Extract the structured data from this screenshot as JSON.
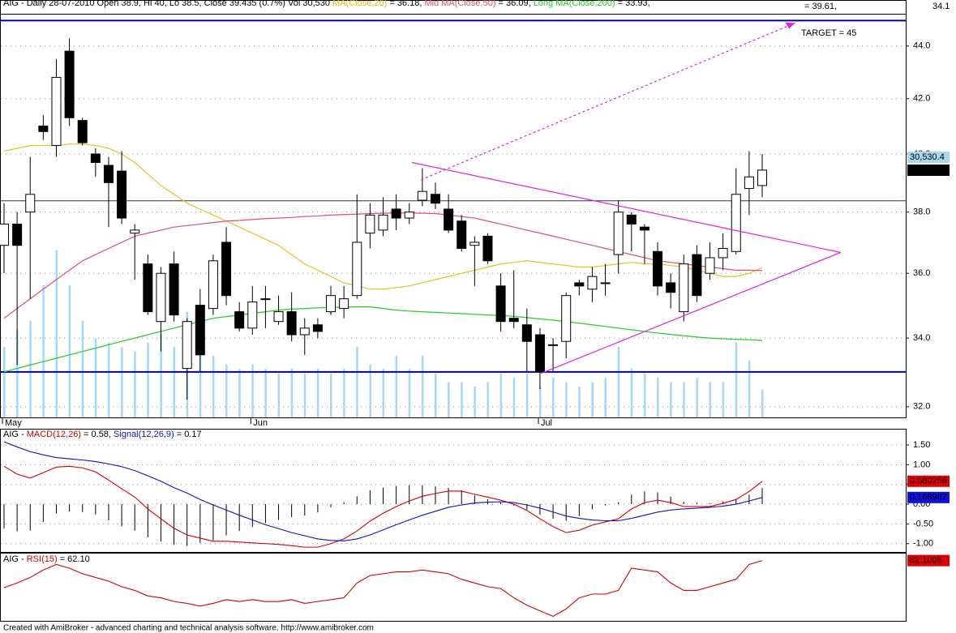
{
  "chart_data": [
    {
      "type": "candlestick",
      "header": [
        {
          "text": "AIG - Daily 28-07-2010 Open 38.9, Hi 40, Lo 38.5, Close 39.435 (0.7%) Vol 30,530 ",
          "color": "#000000"
        },
        {
          "text": "MA(Close,20)",
          "color": "#e8b800"
        },
        {
          "text": " = 36.18, ",
          "color": "#000000"
        },
        {
          "text": "Mid MA(Close,50)",
          "color": "#e0506a"
        },
        {
          "text": " = 36.09, ",
          "color": "#000000"
        },
        {
          "text": "Long MA(Close,200)",
          "color": "#22cc22"
        },
        {
          "text": " = 33.93,",
          "color": "#000000"
        }
      ],
      "header_right": "= 39.61,",
      "top_label": "34.1",
      "categories": [
        "May",
        null,
        null,
        null,
        null,
        null,
        null,
        null,
        null,
        null,
        null,
        null,
        null,
        null,
        null,
        null,
        null,
        null,
        null,
        "Jun",
        null,
        null,
        null,
        null,
        null,
        null,
        null,
        null,
        null,
        null,
        null,
        null,
        null,
        null,
        null,
        null,
        null,
        null,
        null,
        null,
        null,
        "Jul",
        null,
        null,
        null,
        null,
        null,
        null,
        null,
        null,
        null,
        null,
        null,
        null,
        null,
        null,
        null,
        null,
        null
      ],
      "open": [
        36.9,
        37.6,
        38.0,
        41.0,
        40.3,
        43.8,
        41.2,
        40.0,
        39.6,
        39.4,
        37.3,
        36.3,
        34.5,
        36.3,
        33.1,
        35.0,
        34.9,
        37.0,
        34.8,
        34.3,
        35.2,
        34.5,
        34.8,
        34.1,
        34.4,
        34.8,
        34.9,
        35.3,
        37.3,
        37.4,
        38.1,
        37.8,
        38.4,
        38.6,
        38.1,
        37.7,
        36.9,
        37.2,
        35.6,
        34.6,
        34.4,
        34.1,
        33.8,
        33.9,
        35.7,
        35.5,
        35.7,
        36.6,
        37.9,
        37.5,
        36.7,
        35.7,
        34.8,
        36.6,
        36.0,
        36.5,
        36.7,
        38.8,
        38.9
      ],
      "high": [
        38.3,
        38.0,
        39.9,
        41.4,
        43.5,
        44.3,
        41.3,
        40.2,
        39.9,
        40.1,
        37.6,
        36.6,
        36.2,
        36.7,
        34.6,
        35.5,
        36.6,
        37.5,
        35.1,
        35.6,
        35.6,
        35.3,
        35.4,
        34.6,
        34.6,
        35.6,
        35.6,
        38.6,
        38.3,
        38.5,
        38.6,
        38.3,
        39.5,
        39.0,
        38.6,
        37.9,
        37.2,
        37.3,
        36.0,
        36.1,
        34.9,
        34.3,
        34.0,
        35.4,
        35.8,
        36.2,
        36.3,
        38.4,
        38.0,
        37.6,
        37.0,
        36.0,
        36.6,
        36.9,
        37.0,
        37.3,
        39.5,
        40.1,
        40
      ],
      "low": [
        36.0,
        33.2,
        35.2,
        40.5,
        39.9,
        41.0,
        40.3,
        39.2,
        37.5,
        37.6,
        35.8,
        34.7,
        33.6,
        34.5,
        32.2,
        33.0,
        34.7,
        35.0,
        34.2,
        34.1,
        34.3,
        34.4,
        33.9,
        33.5,
        34.0,
        34.7,
        34.6,
        35.2,
        36.8,
        37.2,
        37.4,
        37.6,
        38.2,
        38.1,
        37.3,
        36.7,
        35.6,
        36.3,
        34.2,
        34.3,
        33.0,
        32.5,
        33.0,
        33.4,
        35.3,
        35.1,
        35.3,
        36.0,
        36.7,
        36.3,
        35.3,
        34.9,
        34.5,
        35.1,
        35.8,
        36.1,
        36.6,
        37.9,
        38.5
      ],
      "close": [
        37.6,
        36.9,
        38.6,
        40.8,
        42.8,
        41.3,
        40.4,
        39.7,
        39.0,
        37.8,
        37.4,
        34.8,
        36.0,
        34.7,
        34.5,
        33.5,
        36.4,
        35.3,
        34.3,
        35.1,
        35.2,
        34.8,
        34.1,
        34.3,
        34.2,
        35.3,
        35.2,
        37.0,
        37.9,
        37.9,
        37.8,
        38.0,
        38.7,
        38.3,
        37.4,
        36.8,
        37.0,
        36.4,
        34.5,
        34.5,
        33.9,
        33.0,
        33.8,
        35.3,
        35.6,
        35.9,
        35.7,
        38.0,
        37.6,
        37.4,
        35.6,
        35.4,
        36.3,
        35.3,
        36.5,
        36.8,
        38.6,
        39.2,
        39.435
      ],
      "up_color": "#ffffff",
      "down_color": "#000000",
      "volume": {
        "color": "#a8d8f0",
        "ylim": [
          0,
          440000
        ],
        "last_label": "30,530.4",
        "values": [
          76800,
          96000,
          105600,
          144000,
          182400,
          144000,
          105600,
          86400,
          81600,
          76800,
          72000,
          81600,
          91200,
          76800,
          115200,
          76800,
          67200,
          57600,
          52800,
          57600,
          52800,
          48000,
          52800,
          48000,
          52800,
          48000,
          52800,
          76800,
          57600,
          52800,
          67200,
          52800,
          67200,
          48000,
          38400,
          38400,
          33600,
          38400,
          48000,
          43200,
          48000,
          33600,
          43200,
          38400,
          33600,
          38400,
          43200,
          76800,
          52800,
          48000,
          43200,
          38400,
          38400,
          43200,
          38400,
          38400,
          81600,
          62400,
          30530.4
        ]
      },
      "series": [
        {
          "color": "#e8c020",
          "values": [
            40.1,
            40.2,
            40.3,
            40.3,
            40.3,
            40.35,
            40.35,
            40.3,
            40.2,
            40.0,
            39.7,
            39.3,
            38.9,
            38.6,
            38.3,
            38.1,
            37.9,
            37.7,
            37.5,
            37.3,
            37.1,
            36.9,
            36.6,
            36.3,
            36.1,
            35.9,
            35.7,
            35.6,
            35.5,
            35.5,
            35.55,
            35.6,
            35.7,
            35.8,
            35.9,
            36.0,
            36.1,
            36.2,
            36.3,
            36.35,
            36.4,
            36.35,
            36.3,
            36.25,
            36.2,
            36.2,
            36.25,
            36.3,
            36.35,
            36.3,
            36.3,
            36.25,
            36.2,
            36.1,
            36.0,
            35.9,
            35.9,
            36.0,
            36.18
          ]
        },
        {
          "color": "#e0506a",
          "values": [
            34.6,
            34.9,
            35.2,
            35.5,
            35.8,
            36.1,
            36.4,
            36.6,
            36.8,
            37.0,
            37.2,
            37.3,
            37.4,
            37.5,
            37.55,
            37.6,
            37.65,
            37.7,
            37.72,
            37.75,
            37.78,
            37.8,
            37.82,
            37.85,
            37.87,
            37.9,
            37.92,
            37.93,
            37.95,
            37.96,
            37.97,
            37.97,
            37.96,
            37.95,
            37.9,
            37.85,
            37.8,
            37.7,
            37.6,
            37.5,
            37.4,
            37.3,
            37.2,
            37.1,
            37.0,
            36.9,
            36.8,
            36.7,
            36.6,
            36.5,
            36.4,
            36.35,
            36.3,
            36.25,
            36.2,
            36.15,
            36.1,
            36.1,
            36.09
          ]
        },
        {
          "color": "#22cc22",
          "values": [
            33.0,
            33.1,
            33.2,
            33.3,
            33.4,
            33.5,
            33.6,
            33.7,
            33.8,
            33.9,
            34.0,
            34.1,
            34.2,
            34.3,
            34.4,
            34.5,
            34.6,
            34.65,
            34.7,
            34.75,
            34.8,
            34.85,
            34.88,
            34.9,
            34.92,
            34.93,
            34.94,
            34.95,
            34.95,
            34.9,
            34.85,
            34.82,
            34.8,
            34.78,
            34.76,
            34.74,
            34.72,
            34.7,
            34.68,
            34.66,
            34.62,
            34.58,
            34.54,
            34.5,
            34.45,
            34.4,
            34.35,
            34.3,
            34.25,
            34.2,
            34.15,
            34.11,
            34.07,
            34.03,
            34.0,
            33.98,
            33.96,
            33.95,
            33.93
          ]
        }
      ],
      "hlines": [
        {
          "value": 45,
          "color": "#0000a0"
        },
        {
          "value": 33.0,
          "color": "#0000a0"
        },
        {
          "value": 38.38,
          "color": "#303050"
        }
      ],
      "trendlines": [
        {
          "x": [
            31.2,
            64.0
          ],
          "y": [
            39.7,
            36.67
          ],
          "color": "#e020e0",
          "dashed": false
        },
        {
          "x": [
            41.1,
            64.0
          ],
          "y": [
            32.96,
            36.67
          ],
          "color": "#e020e0",
          "dashed": false
        },
        {
          "x": [
            31.9,
            60.5
          ],
          "y": [
            39.1,
            44.9
          ],
          "color": "#e020e0",
          "dashed": true
        }
      ],
      "annotation": "TARGET = 45",
      "log": true,
      "ylim": [
        31.7,
        45.27
      ],
      "yticks": [
        {
          "value": 44,
          "label": "44.0"
        },
        {
          "value": 42,
          "label": "42.0"
        },
        {
          "value": 40,
          "label": "40.0"
        },
        {
          "value": 38,
          "label": "38.0"
        },
        {
          "value": 36,
          "label": "36.0"
        },
        {
          "value": 34,
          "label": "34.0"
        },
        {
          "value": 32,
          "label": "32.0"
        }
      ],
      "grid": true
    },
    {
      "type": "line",
      "header": [
        {
          "text": "AIG - ",
          "color": "#000000"
        },
        {
          "text": "MACD(12,26)",
          "color": "#d00000"
        },
        {
          "text": " = 0.58, ",
          "color": "#000000"
        },
        {
          "text": "Signal(12,26,9)",
          "color": "#1010c0"
        },
        {
          "text": " = 0.17",
          "color": "#000000"
        }
      ],
      "series": [
        {
          "type": "bar",
          "color": "#000000",
          "values": [
            -0.62,
            -0.69,
            -0.67,
            -0.45,
            -0.24,
            -0.19,
            -0.2,
            -0.26,
            -0.41,
            -0.56,
            -0.67,
            -0.84,
            -0.95,
            -1.03,
            -1.06,
            -0.98,
            -0.92,
            -0.79,
            -0.68,
            -0.58,
            -0.48,
            -0.4,
            -0.33,
            -0.29,
            -0.21,
            -0.08,
            0.05,
            0.2,
            0.35,
            0.42,
            0.46,
            0.48,
            0.48,
            0.45,
            0.41,
            0.35,
            0.22,
            0.13,
            0.04,
            -0.04,
            -0.14,
            -0.27,
            -0.37,
            -0.42,
            -0.3,
            -0.13,
            -0.03,
            0.05,
            0.24,
            0.32,
            0.3,
            0.19,
            0.06,
            0.04,
            0.02,
            0.07,
            0.12,
            0.24,
            0.41
          ]
        },
        {
          "type": "line",
          "color": "#d00000",
          "label_bg": "#e00000",
          "values": [
            0.96,
            0.76,
            0.66,
            0.8,
            0.94,
            0.96,
            0.92,
            0.82,
            0.61,
            0.39,
            0.18,
            -0.12,
            -0.37,
            -0.61,
            -0.78,
            -0.86,
            -0.94,
            -0.94,
            -0.96,
            -0.98,
            -1.0,
            -1.02,
            -1.05,
            -1.09,
            -1.09,
            -1.0,
            -0.88,
            -0.68,
            -0.43,
            -0.23,
            -0.06,
            0.08,
            0.2,
            0.27,
            0.33,
            0.33,
            0.25,
            0.18,
            0.1,
            0.0,
            -0.16,
            -0.37,
            -0.57,
            -0.72,
            -0.66,
            -0.53,
            -0.45,
            -0.37,
            -0.12,
            0.04,
            0.1,
            0.04,
            -0.06,
            -0.06,
            -0.06,
            0.02,
            0.12,
            0.32,
            0.580256
          ]
        },
        {
          "type": "line",
          "color": "#1010c0",
          "label_bg": "#1010e0",
          "values": [
            1.58,
            1.45,
            1.33,
            1.25,
            1.18,
            1.15,
            1.12,
            1.08,
            1.02,
            0.95,
            0.85,
            0.72,
            0.58,
            0.42,
            0.28,
            0.12,
            -0.02,
            -0.15,
            -0.28,
            -0.4,
            -0.52,
            -0.62,
            -0.72,
            -0.8,
            -0.88,
            -0.92,
            -0.93,
            -0.88,
            -0.78,
            -0.65,
            -0.52,
            -0.4,
            -0.28,
            -0.18,
            -0.08,
            -0.02,
            0.03,
            0.05,
            0.06,
            0.04,
            -0.02,
            -0.1,
            -0.2,
            -0.3,
            -0.36,
            -0.4,
            -0.42,
            -0.42,
            -0.36,
            -0.28,
            -0.2,
            -0.15,
            -0.12,
            -0.1,
            -0.08,
            -0.05,
            0.0,
            0.08,
            0.168987
          ]
        }
      ],
      "ylim": [
        -1.19,
        1.89
      ],
      "yticks": [
        {
          "value": 1.5,
          "label": "1.50"
        },
        {
          "value": 1,
          "label": "1.00"
        },
        {
          "value": 0.5,
          "label": "0.50"
        },
        {
          "value": 0,
          "label": "0.00"
        },
        {
          "value": -0.5,
          "label": "-0.50"
        },
        {
          "value": -1,
          "label": "-1.00"
        }
      ],
      "grid": true
    },
    {
      "type": "line",
      "header": [
        {
          "text": "AIG - ",
          "color": "#000000"
        },
        {
          "text": "RSI(15)",
          "color": "#d00000"
        },
        {
          "text": " = 62.10",
          "color": "#000000"
        }
      ],
      "series": [
        {
          "type": "line",
          "color": "#d00000",
          "label_bg": "#e00000",
          "values": [
            47.5,
            50,
            53,
            57,
            60,
            58,
            55,
            53,
            51,
            48,
            46,
            43,
            42,
            40,
            39,
            37.5,
            39,
            41,
            40,
            41,
            40,
            40,
            41,
            39,
            40,
            41,
            42,
            50,
            54,
            55,
            56,
            56,
            57,
            56,
            55,
            52,
            50,
            48,
            47,
            42,
            38,
            35,
            32,
            36,
            42,
            44,
            44,
            46,
            58,
            57,
            56,
            50,
            46,
            46,
            48,
            50,
            52,
            60,
            62.1008
          ]
        }
      ],
      "ylim": [
        30,
        65
      ],
      "grid": false
    }
  ],
  "footer": "Created with AmiBroker - advanced charting and technical analysis software. http://www.amibroker.com"
}
